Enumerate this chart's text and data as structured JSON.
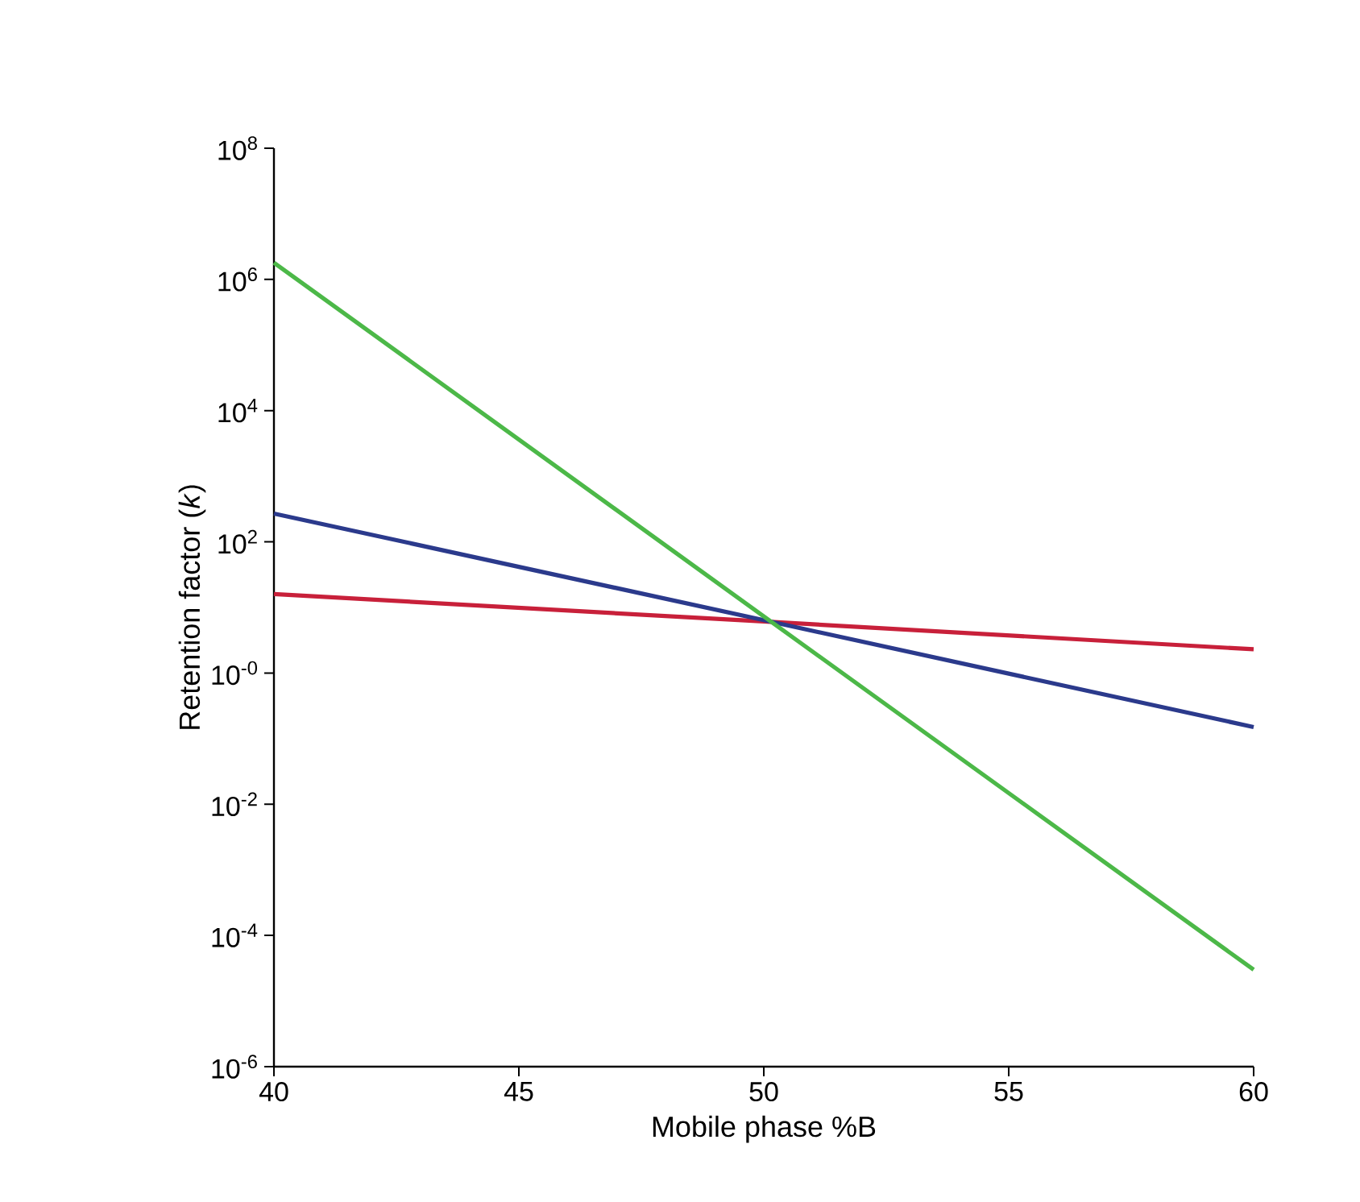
{
  "chart_data": {
    "type": "line",
    "xlabel": "Mobile phase %B",
    "ylabel": "Retention factor (*k*)",
    "log": "y",
    "x": [
      40,
      50,
      60
    ],
    "series": [
      {
        "color": "#c8203a",
        "values": [
          16,
          6.1,
          2.3
        ]
      },
      {
        "color": "#2b3a8c",
        "values": [
          270,
          6.4,
          0.15
        ]
      },
      {
        "color": "#4cb848",
        "values": [
          1800000,
          7.3,
          3e-05
        ]
      }
    ],
    "xlim": [
      40,
      60
    ],
    "xticks": [
      40,
      45,
      50,
      55,
      60
    ],
    "ylim": [
      1e-06,
      100000000
    ],
    "yticks": [
      {
        "value": 1e-06,
        "label": "10$^{-6}$"
      },
      {
        "value": 0.0001,
        "label": "10$^{-4}$"
      },
      {
        "value": 0.01,
        "label": "10$^{-2}$"
      },
      {
        "value": 1,
        "label": "10$^{-0}$"
      },
      {
        "value": 100,
        "label": "10$^{2}$"
      },
      {
        "value": 10000,
        "label": "10$^{4}$"
      },
      {
        "value": 1000000,
        "label": "10$^{6}$"
      },
      {
        "value": 100000000,
        "label": "10$^{8}$"
      }
    ],
    "grid": false,
    "marker": "none",
    "line_style": "solid"
  }
}
